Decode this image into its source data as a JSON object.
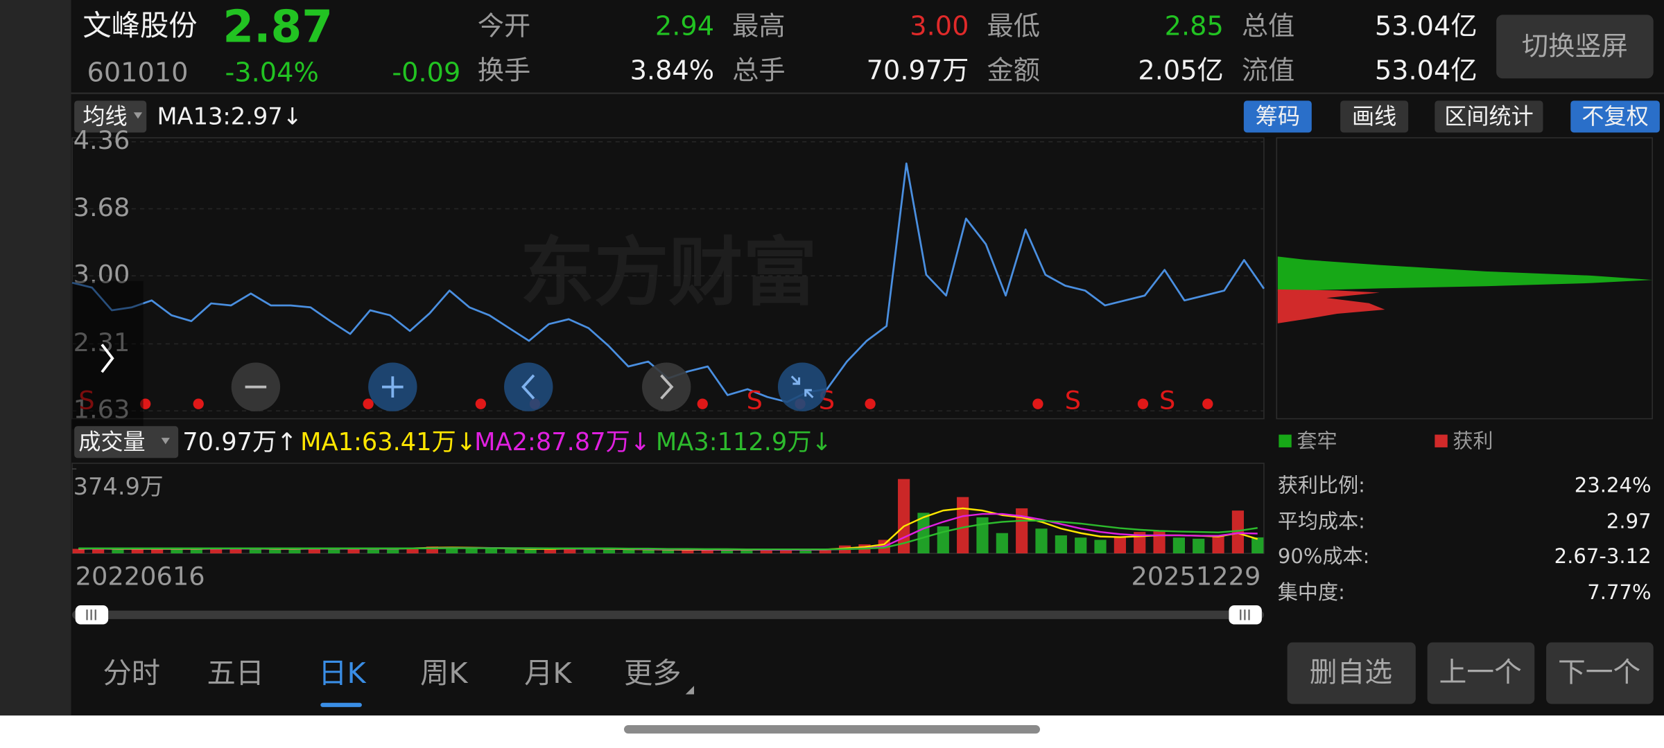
{
  "header": {
    "name": "文峰股份",
    "price": "2.87",
    "code": "601010",
    "change_pct": "-3.04%",
    "change": "-0.09",
    "stats": [
      {
        "label": "今开",
        "value": "2.94"
      },
      {
        "label": "最高",
        "value": "3.00"
      },
      {
        "label": "最低",
        "value": "2.85"
      },
      {
        "label": "总值",
        "value": "53.04亿"
      },
      {
        "label": "换手",
        "value": "3.84%"
      },
      {
        "label": "总手",
        "value": "70.97万"
      },
      {
        "label": "金额",
        "value": "2.05亿"
      },
      {
        "label": "流值",
        "value": "53.04亿"
      }
    ]
  },
  "switch_button": "切换竖屏",
  "toolbar": {
    "ma_button": "均线",
    "ma_text": "MA13:2.97↓",
    "buttons": [
      "筹码",
      "画线",
      "区间统计",
      "不复权"
    ]
  },
  "watermark": "东方财富",
  "chart_data": [
    {
      "type": "line",
      "color": "#4a8fe0",
      "values": [
        2.93,
        2.88,
        2.65,
        2.68,
        2.75,
        2.6,
        2.54,
        2.72,
        2.7,
        2.82,
        2.7,
        2.7,
        2.68,
        2.54,
        2.41,
        2.65,
        2.6,
        2.44,
        2.62,
        2.85,
        2.68,
        2.6,
        2.47,
        2.34,
        2.51,
        2.56,
        2.47,
        2.29,
        2.08,
        2.13,
        1.96,
        2.03,
        2.08,
        1.79,
        1.85,
        1.77,
        1.72,
        1.82,
        1.85,
        2.13,
        2.34,
        2.49,
        4.14,
        3.01,
        2.8,
        3.58,
        3.32,
        2.8,
        3.47,
        3.01,
        2.9,
        2.85,
        2.7,
        2.75,
        2.8,
        3.06,
        2.75,
        2.8,
        2.85,
        3.16,
        2.87
      ],
      "ylim": [
        1.55,
        4.4
      ],
      "yticks": [
        4.36,
        3.68,
        {
          "value": 3,
          "label": "3.00"
        },
        2.31,
        1.63
      ],
      "grid": true,
      "signal_labels": [
        "S",
        "S",
        "S",
        "S",
        "S"
      ]
    },
    {
      "type": "bar",
      "title": "成交量",
      "current_label": "70.97万↑",
      "up_color": "#e02a2a",
      "down_color": "#22b02a",
      "values": [
        20,
        22,
        18,
        19,
        21,
        20,
        18,
        22,
        25,
        20,
        19,
        18,
        24,
        20,
        22,
        21,
        20,
        25,
        30,
        28,
        22,
        20,
        19,
        18,
        22,
        24,
        20,
        18,
        17,
        16,
        15,
        16,
        18,
        17,
        15,
        16,
        18,
        16,
        17,
        35,
        40,
        60,
        330,
        180,
        120,
        250,
        160,
        90,
        200,
        110,
        80,
        70,
        60,
        75,
        95,
        100,
        70,
        65,
        80,
        190,
        71
      ],
      "series": [
        {
          "name": "MA1:63.41万↓",
          "color": "#ffe600",
          "values": [
            20,
            21,
            20,
            20,
            20,
            20,
            20,
            21,
            22,
            21,
            20,
            20,
            21,
            21,
            21,
            21,
            21,
            22,
            25,
            26,
            25,
            24,
            22,
            20,
            20,
            21,
            21,
            20,
            19,
            18,
            17,
            16,
            16,
            16,
            16,
            16,
            16,
            17,
            17,
            22,
            28,
            40,
            120,
            160,
            190,
            200,
            190,
            170,
            160,
            140,
            110,
            90,
            75,
            72,
            76,
            80,
            80,
            78,
            75,
            90,
            63.41
          ]
        },
        {
          "name": "MA2:87.87万↓",
          "color": "#e020e0",
          "values": [
            21,
            21,
            21,
            21,
            21,
            21,
            21,
            21,
            21,
            21,
            21,
            21,
            21,
            21,
            21,
            21,
            21,
            22,
            23,
            24,
            24,
            24,
            23,
            22,
            22,
            21,
            21,
            21,
            20,
            19,
            18,
            18,
            17,
            17,
            17,
            16,
            16,
            16,
            17,
            19,
            22,
            30,
            70,
            110,
            140,
            165,
            175,
            175,
            165,
            150,
            130,
            110,
            95,
            85,
            80,
            80,
            80,
            78,
            78,
            90,
            87.87
          ]
        },
        {
          "name": "MA3:112.9万↓",
          "color": "#2dbb2d",
          "values": [
            22,
            22,
            22,
            22,
            22,
            22,
            22,
            22,
            22,
            22,
            22,
            22,
            22,
            22,
            22,
            22,
            22,
            22,
            22,
            23,
            23,
            23,
            23,
            23,
            22,
            22,
            22,
            22,
            21,
            21,
            20,
            20,
            19,
            19,
            18,
            18,
            18,
            18,
            18,
            19,
            21,
            25,
            45,
            70,
            95,
            115,
            130,
            140,
            145,
            145,
            140,
            132,
            122,
            112,
            105,
            100,
            97,
            95,
            93,
            100,
            112.9
          ]
        }
      ],
      "ylim": [
        0,
        400
      ],
      "yticks": [
        {
          "value": 374.9,
          "label": "374.9万"
        }
      ],
      "date_range": [
        "20220616",
        "20251229"
      ]
    }
  ],
  "chip": {
    "legend": [
      "套牢",
      "获利"
    ],
    "stats": [
      {
        "label": "获利比例:",
        "value": "23.24%"
      },
      {
        "label": "平均成本:",
        "value": "2.97"
      },
      {
        "label": "90%成本:",
        "value": "2.67-3.12"
      },
      {
        "label": "集中度:",
        "value": "7.77%"
      }
    ]
  },
  "tabs": [
    "分时",
    "五日",
    "日K",
    "周K",
    "月K",
    "更多"
  ],
  "actions": [
    "删自选",
    "上一个",
    "下一个"
  ]
}
